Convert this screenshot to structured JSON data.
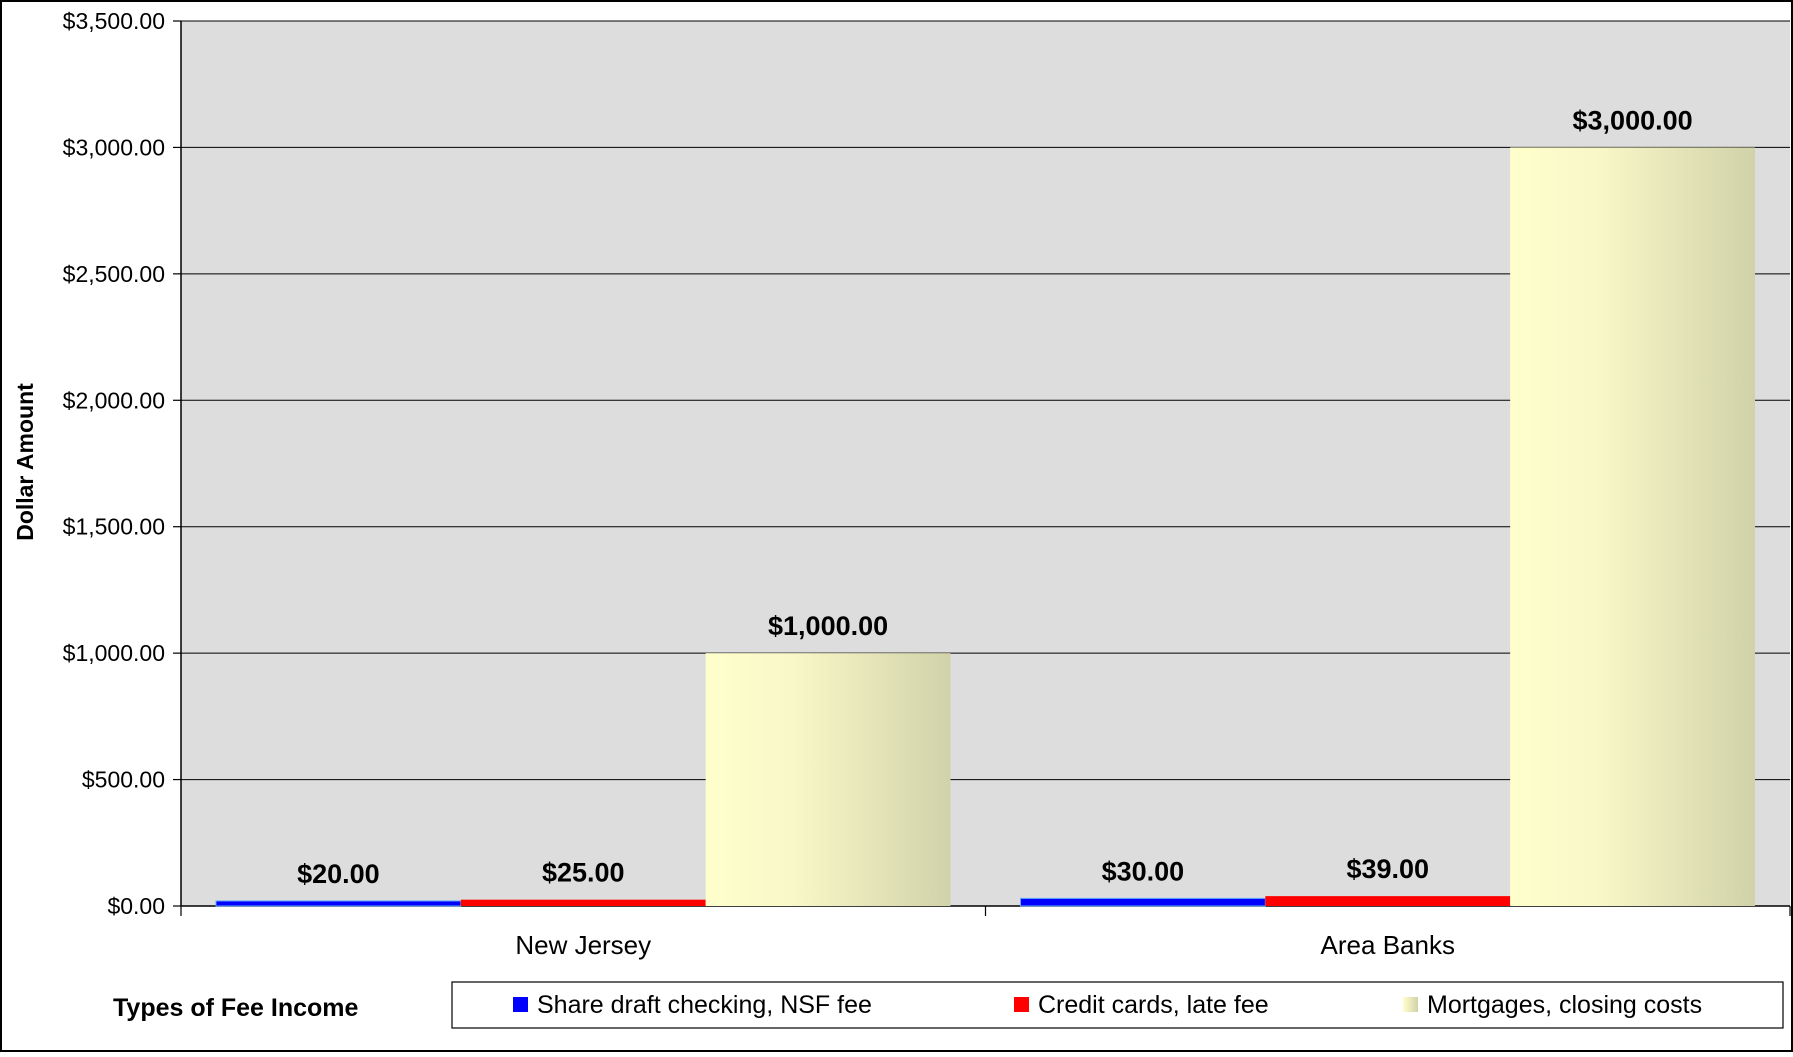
{
  "chart_data": {
    "type": "bar",
    "categories": [
      "New Jersey",
      "Area Banks"
    ],
    "series": [
      {
        "name": "Share draft checking, NSF fee",
        "values": [
          20,
          30
        ],
        "color": "#0000ff",
        "value_labels": [
          "$20.00",
          "$30.00"
        ]
      },
      {
        "name": "Credit cards, late fee",
        "values": [
          25,
          39
        ],
        "color": "#ff0000",
        "value_labels": [
          "$25.00",
          "$39.00"
        ]
      },
      {
        "name": "Mortgages, closing costs",
        "values": [
          1000,
          3000
        ],
        "color": "#ffffcc",
        "value_labels": [
          "$1,000.00",
          "$3,000.00"
        ]
      }
    ],
    "title": "",
    "xlabel": "",
    "ylabel": "Dollar Amount",
    "ylim": [
      0,
      3500
    ],
    "yticks": [
      0,
      500,
      1000,
      1500,
      2000,
      2500,
      3000,
      3500
    ],
    "ytick_labels": [
      "$0.00",
      "$500.00",
      "$1,000.00",
      "$1,500.00",
      "$2,000.00",
      "$2,500.00",
      "$3,000.00",
      "$3,500.00"
    ],
    "grid": true,
    "plot_background": "#dddddd",
    "legend_title": "Types of Fee Income",
    "legend_position": "bottom"
  }
}
